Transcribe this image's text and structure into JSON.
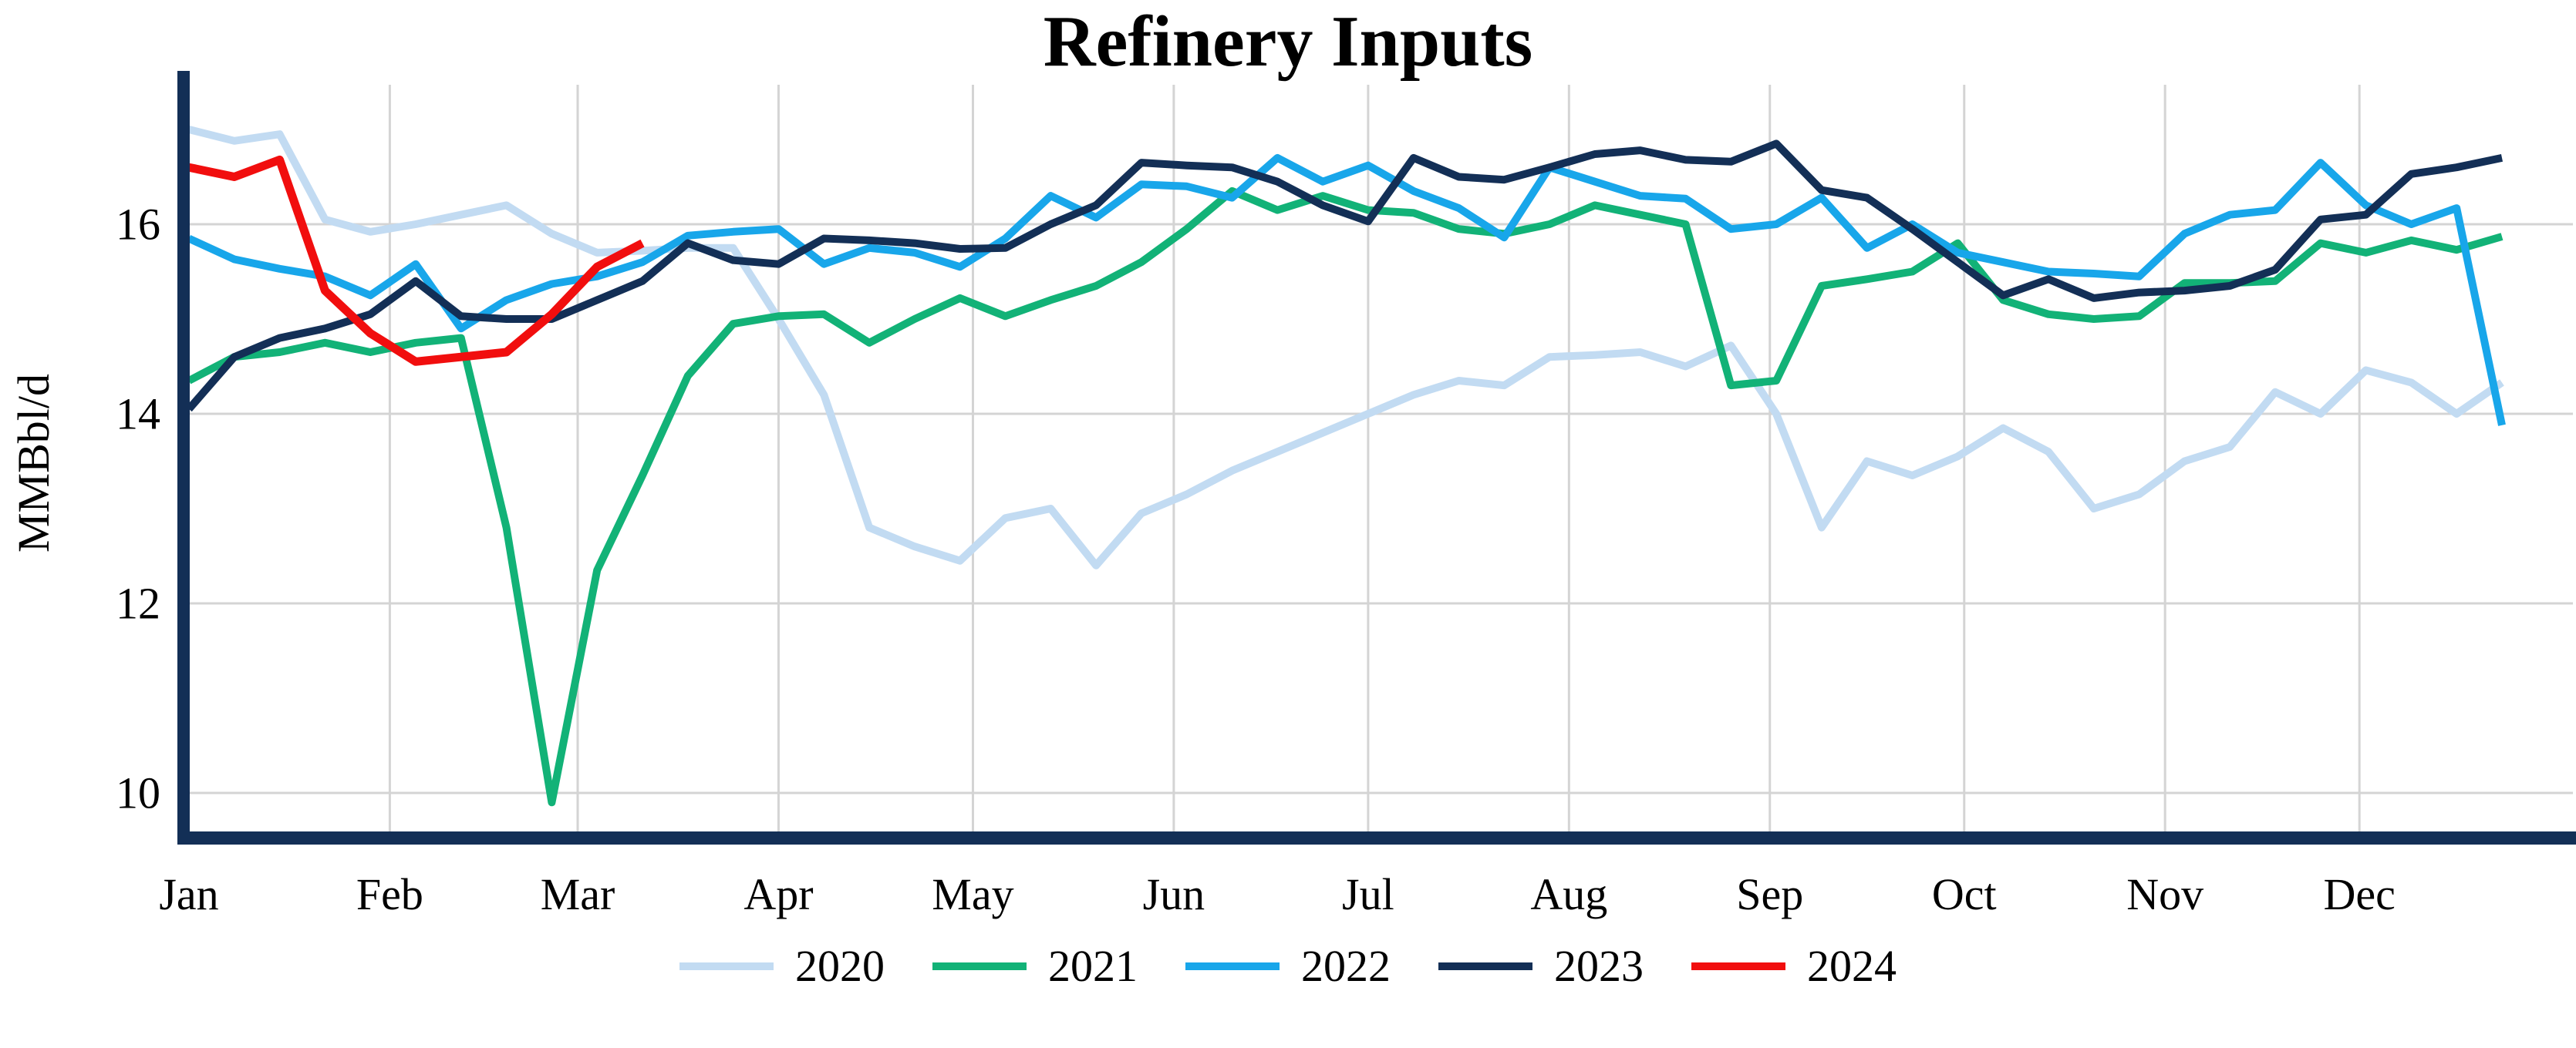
{
  "chart_data": {
    "type": "line",
    "title": "Refinery Inputs",
    "ylabel": "MMBbl/d",
    "xlabel": "",
    "x_axis": {
      "unit": "weekly",
      "tick_labels": [
        "Jan",
        "Feb",
        "Mar",
        "Apr",
        "May",
        "Jun",
        "Jul",
        "Aug",
        "Sep",
        "Oct",
        "Nov",
        "Dec"
      ],
      "month_day_offsets": [
        0,
        31,
        60,
        91,
        121,
        152,
        182,
        213,
        244,
        274,
        305,
        335
      ]
    },
    "y_axis": {
      "ticks": [
        16,
        14,
        12,
        10
      ],
      "ylim": [
        9.5,
        17.5
      ]
    },
    "grid": true,
    "legend_position": "bottom-center",
    "colors": {
      "axis": "#132F56",
      "grid": "#D4D4D4",
      "text": "#000000"
    },
    "series": [
      {
        "name": "2020",
        "color": "#C2DBF2",
        "values": [
          17.0,
          16.88,
          16.95,
          16.05,
          15.92,
          16.0,
          16.1,
          16.2,
          15.9,
          15.7,
          15.72,
          15.75,
          15.75,
          15.0,
          14.2,
          12.8,
          12.6,
          12.45,
          12.9,
          13.0,
          12.4,
          12.95,
          13.15,
          13.4,
          13.6,
          13.8,
          14.0,
          14.2,
          14.35,
          14.3,
          14.6,
          14.62,
          14.65,
          14.5,
          14.72,
          14.0,
          12.8,
          13.5,
          13.35,
          13.55,
          13.85,
          13.6,
          13.0,
          13.15,
          13.5,
          13.65,
          14.23,
          14.0,
          14.46,
          14.33,
          14.0,
          14.33
        ]
      },
      {
        "name": "2021",
        "color": "#12B277",
        "values": [
          14.35,
          14.6,
          14.65,
          14.75,
          14.65,
          14.75,
          14.8,
          12.8,
          9.9,
          12.35,
          13.35,
          14.4,
          14.95,
          15.03,
          15.05,
          14.75,
          15.0,
          15.22,
          15.03,
          15.2,
          15.35,
          15.6,
          15.95,
          16.35,
          16.15,
          16.3,
          16.15,
          16.12,
          15.95,
          15.9,
          16.0,
          16.2,
          16.1,
          16.0,
          14.3,
          14.35,
          15.35,
          15.42,
          15.5,
          15.8,
          15.2,
          15.05,
          15.0,
          15.03,
          15.38,
          15.38,
          15.4,
          15.8,
          15.7,
          15.83,
          15.73,
          15.87
        ]
      },
      {
        "name": "2022",
        "color": "#18A6EA",
        "values": [
          15.85,
          15.63,
          15.53,
          15.45,
          15.25,
          15.58,
          14.9,
          15.2,
          15.37,
          15.45,
          15.6,
          15.88,
          15.92,
          15.95,
          15.58,
          15.75,
          15.7,
          15.55,
          15.85,
          16.3,
          16.07,
          16.42,
          16.4,
          16.28,
          16.7,
          16.45,
          16.62,
          16.35,
          16.17,
          15.86,
          16.6,
          16.45,
          16.3,
          16.27,
          15.95,
          16.0,
          16.28,
          15.75,
          16.0,
          15.7,
          15.6,
          15.5,
          15.48,
          15.45,
          15.9,
          16.1,
          16.15,
          16.65,
          16.2,
          16.0,
          16.17,
          13.88
        ]
      },
      {
        "name": "2023",
        "color": "#132F56",
        "values": [
          14.05,
          14.6,
          14.8,
          14.9,
          15.05,
          15.4,
          15.03,
          15.0,
          15.0,
          15.2,
          15.4,
          15.8,
          15.62,
          15.58,
          15.85,
          15.83,
          15.8,
          15.74,
          15.75,
          16.0,
          16.2,
          16.65,
          16.62,
          16.6,
          16.45,
          16.2,
          16.03,
          16.7,
          16.5,
          16.47,
          16.6,
          16.74,
          16.78,
          16.68,
          16.66,
          16.85,
          16.36,
          16.28,
          15.95,
          15.6,
          15.25,
          15.42,
          15.22,
          15.28,
          15.3,
          15.35,
          15.52,
          16.05,
          16.1,
          16.53,
          16.6,
          16.7
        ]
      },
      {
        "name": "2024",
        "color": "#F10E0E",
        "values": [
          16.6,
          16.5,
          16.68,
          15.3,
          14.85,
          14.55,
          14.6,
          14.65,
          15.05,
          15.55,
          15.8
        ]
      }
    ]
  }
}
